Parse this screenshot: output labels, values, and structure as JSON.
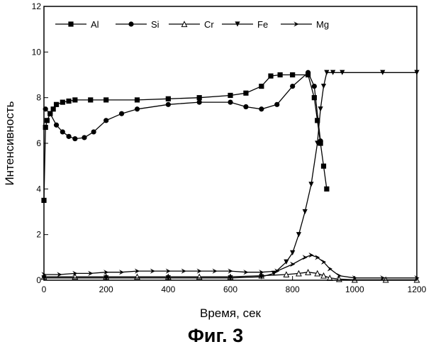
{
  "figure": {
    "caption": "Фиг. 3"
  },
  "chart_data": {
    "type": "line",
    "xlabel": "Время, сек",
    "ylabel": "Интенсивность",
    "xlim": [
      0,
      1200
    ],
    "ylim": [
      0,
      12
    ],
    "xticks": [
      0,
      200,
      400,
      600,
      800,
      1000,
      1200
    ],
    "yticks": [
      0,
      2,
      4,
      6,
      8,
      10,
      12
    ],
    "ytick_labels": [
      "0",
      "2",
      "4",
      "6",
      "8",
      "10",
      "12"
    ],
    "grid": false,
    "legend_position": "top",
    "series": [
      {
        "name": "Al",
        "marker": "square",
        "x": [
          0,
          5,
          10,
          20,
          30,
          40,
          60,
          80,
          100,
          150,
          200,
          300,
          400,
          500,
          600,
          650,
          700,
          730,
          760,
          800,
          850,
          870,
          880,
          890,
          900,
          910
        ],
        "y": [
          3.5,
          6.7,
          7.0,
          7.3,
          7.5,
          7.7,
          7.8,
          7.85,
          7.9,
          7.9,
          7.9,
          7.9,
          7.95,
          8.0,
          8.1,
          8.2,
          8.5,
          8.95,
          9.0,
          9.0,
          9.0,
          8.0,
          7.0,
          6.0,
          5.0,
          4.0
        ]
      },
      {
        "name": "Si",
        "marker": "circle",
        "x": [
          5,
          20,
          40,
          60,
          80,
          100,
          130,
          160,
          200,
          250,
          300,
          400,
          500,
          600,
          650,
          700,
          750,
          800,
          850,
          870,
          890
        ],
        "y": [
          7.5,
          7.3,
          6.8,
          6.5,
          6.3,
          6.2,
          6.25,
          6.5,
          7.0,
          7.3,
          7.5,
          7.7,
          7.8,
          7.8,
          7.6,
          7.5,
          7.7,
          8.5,
          9.1,
          8.5,
          6.1
        ]
      },
      {
        "name": "Cr",
        "marker": "triangle-up",
        "x": [
          0,
          100,
          200,
          300,
          400,
          500,
          600,
          700,
          780,
          820,
          850,
          880,
          900,
          920,
          950,
          1000,
          1100,
          1200
        ],
        "y": [
          0.15,
          0.15,
          0.15,
          0.15,
          0.15,
          0.15,
          0.15,
          0.2,
          0.25,
          0.3,
          0.35,
          0.3,
          0.2,
          0.1,
          0.05,
          0.02,
          0.02,
          0.02
        ]
      },
      {
        "name": "Fe",
        "marker": "triangle-down",
        "x": [
          0,
          200,
          400,
          600,
          700,
          740,
          780,
          800,
          820,
          840,
          860,
          880,
          890,
          900,
          910,
          930,
          960,
          1090,
          1200
        ],
        "y": [
          0.1,
          0.1,
          0.1,
          0.1,
          0.15,
          0.3,
          0.8,
          1.2,
          2.0,
          3.0,
          4.2,
          6.0,
          7.5,
          8.5,
          9.1,
          9.1,
          9.1,
          9.1,
          9.1
        ]
      },
      {
        "name": "Mg",
        "marker": "arrow-right",
        "x": [
          0,
          50,
          100,
          150,
          200,
          250,
          300,
          350,
          400,
          450,
          500,
          550,
          600,
          650,
          700,
          750,
          800,
          840,
          860,
          880,
          900,
          920,
          950,
          1000,
          1090,
          1200
        ],
        "y": [
          0.25,
          0.25,
          0.3,
          0.3,
          0.35,
          0.35,
          0.4,
          0.4,
          0.4,
          0.4,
          0.4,
          0.4,
          0.4,
          0.35,
          0.35,
          0.4,
          0.7,
          1.0,
          1.1,
          1.0,
          0.8,
          0.5,
          0.2,
          0.1,
          0.1,
          0.1
        ]
      }
    ]
  }
}
